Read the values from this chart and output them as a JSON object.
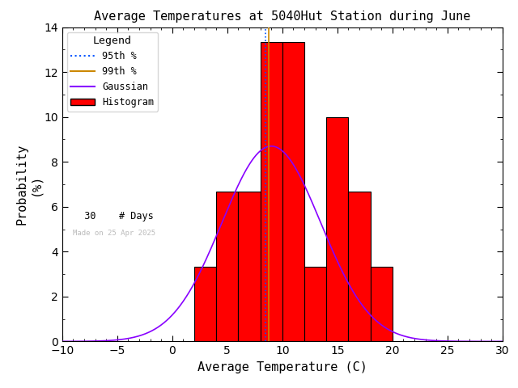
{
  "title": "Average Temperatures at 5040Hut Station during June",
  "xlabel": "Average Temperature (C)",
  "ylabel": "Probability\n(%)",
  "xlim": [
    -10,
    30
  ],
  "ylim": [
    0,
    14
  ],
  "yticks": [
    0,
    2,
    4,
    6,
    8,
    10,
    12,
    14
  ],
  "xticks": [
    -10,
    -5,
    0,
    5,
    10,
    15,
    20,
    25,
    30
  ],
  "bar_edges": [
    2,
    4,
    6,
    8,
    10,
    12,
    14,
    16,
    18
  ],
  "bar_heights": [
    3.333,
    6.667,
    6.667,
    13.333,
    13.333,
    3.333,
    10.0,
    6.667,
    3.333
  ],
  "bar_color": "#ff0000",
  "bar_edgecolor": "#000000",
  "gaussian_mean": 9.0,
  "gaussian_std": 4.5,
  "gaussian_scale": 8.7,
  "gaussian_color": "#8800ff",
  "percentile_95": 8.5,
  "percentile_99": 8.8,
  "p95_color": "#0055ff",
  "p99_color": "#cc8800",
  "n_days": 30,
  "watermark": "Made on 25 Apr 2025",
  "watermark_color": "#bbbbbb",
  "legend_title": "Legend",
  "background_color": "#ffffff",
  "title_fontsize": 11,
  "axis_fontsize": 11,
  "tick_fontsize": 10
}
